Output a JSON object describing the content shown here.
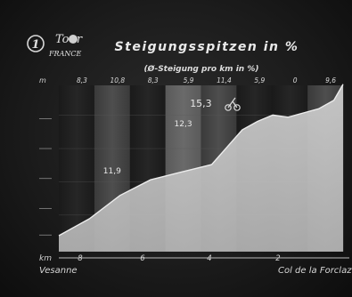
{
  "header": {
    "logo_channel": "1",
    "logo_line1": "Tour",
    "logo_line2": "FRANCE",
    "title": "Steigungsspitzen in %",
    "subtitle": "(Ø-Steigung pro km in %)"
  },
  "chart_data": {
    "type": "area",
    "title": "Steigungsspitzen in %",
    "subtitle": "(Ø-Steigung pro km in %)",
    "x_label": "km",
    "km_to_go_marks": [
      "8",
      "6",
      "4",
      "2"
    ],
    "start_label": "Vesanne",
    "end_label": "Col de la Forclaz",
    "y_top_label": "m",
    "segment_gradients": [
      "8,3",
      "10,8",
      "8,3",
      "5,9",
      "11,4",
      "5,9",
      "0",
      "9,6"
    ],
    "peak_gradients": [
      {
        "segment": 2,
        "value": "11,9"
      },
      {
        "segment": 4,
        "value": "12,3"
      },
      {
        "segment": 5,
        "value": "15,3"
      }
    ],
    "profile": {
      "x_km_from_start": [
        0,
        1,
        2,
        3,
        4,
        5,
        6,
        6.5,
        7,
        7.5,
        8,
        8.5,
        9,
        9.3
      ],
      "relative_elevation": [
        0,
        40,
        95,
        132,
        150,
        168,
        250,
        270,
        285,
        280,
        290,
        300,
        320,
        358
      ]
    },
    "grid": true
  }
}
